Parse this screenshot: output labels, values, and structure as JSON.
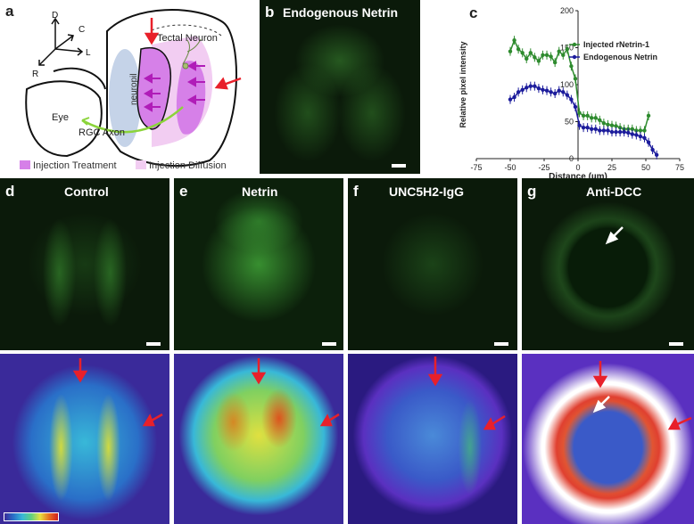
{
  "panels": {
    "a": {
      "label": "a",
      "axes": {
        "d": "D",
        "c": "C",
        "l": "L",
        "r": "R"
      },
      "tectal_neuron": "Tectal Neuron",
      "neuropil": "neuropil",
      "eye": "Eye",
      "rgc_axon": "RGC Axon",
      "legend": {
        "injection_treatment": "Injection Treatment",
        "injection_diffusion": "Injection Diffusion"
      },
      "colors": {
        "treatment": "#d680e8",
        "diffusion": "#f2cdf2",
        "axon": "#8bd43a",
        "arrow": "#e8202a",
        "neuropil": "#c5d3e8"
      }
    },
    "b": {
      "label": "b",
      "title": "Endogenous Netrin"
    },
    "c": {
      "label": "c"
    },
    "d": {
      "label": "d",
      "title": "Control"
    },
    "e": {
      "label": "e",
      "title": "Netrin"
    },
    "f": {
      "label": "f",
      "title": "UNC5H2-IgG"
    },
    "g": {
      "label": "g",
      "title": "Anti-DCC"
    }
  },
  "chart_data": {
    "type": "line",
    "xlabel": "Distance (µm)",
    "ylabel": "Relative pixel intensity",
    "xlim": [
      -75,
      75
    ],
    "ylim": [
      0,
      200
    ],
    "xticks": [
      "-75",
      "-50",
      "-25",
      "0",
      "25",
      "50",
      "75"
    ],
    "yticks": [
      "0",
      "50",
      "100",
      "150",
      "200"
    ],
    "legend_position": "top-right",
    "series": [
      {
        "name": "Injected rNetrin-1",
        "color": "#2e8b2e",
        "x": [
          -50,
          -47,
          -44,
          -41,
          -38,
          -35,
          -32,
          -29,
          -26,
          -23,
          -20,
          -17,
          -14,
          -11,
          -8,
          -5,
          -2,
          1,
          4,
          7,
          10,
          13,
          16,
          19,
          22,
          25,
          28,
          31,
          34,
          37,
          40,
          43,
          46,
          49,
          52
        ],
        "y": [
          145,
          160,
          148,
          143,
          135,
          143,
          137,
          132,
          140,
          140,
          138,
          130,
          145,
          140,
          148,
          125,
          108,
          62,
          58,
          58,
          55,
          55,
          52,
          48,
          46,
          45,
          44,
          42,
          40,
          40,
          40,
          38,
          38,
          38,
          58
        ]
      },
      {
        "name": "Endogenous Netrin",
        "color": "#1c1c9c",
        "x": [
          -50,
          -47,
          -44,
          -41,
          -38,
          -35,
          -32,
          -29,
          -26,
          -23,
          -20,
          -17,
          -14,
          -11,
          -8,
          -5,
          -2,
          1,
          4,
          7,
          10,
          13,
          16,
          19,
          22,
          25,
          28,
          31,
          34,
          37,
          40,
          43,
          46,
          49,
          52,
          55,
          58
        ],
        "y": [
          80,
          83,
          90,
          93,
          96,
          98,
          98,
          95,
          93,
          92,
          90,
          88,
          92,
          90,
          86,
          80,
          70,
          45,
          42,
          42,
          40,
          40,
          38,
          38,
          38,
          36,
          36,
          36,
          36,
          35,
          33,
          32,
          30,
          28,
          22,
          12,
          5
        ]
      }
    ]
  }
}
